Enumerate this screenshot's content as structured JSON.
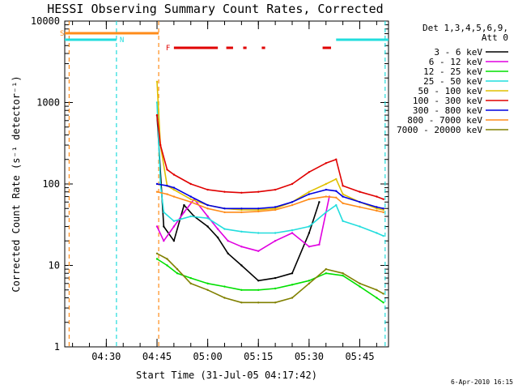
{
  "chart_data": {
    "type": "line",
    "title": "HESSI Observing Summary Count Rates, Corrected",
    "xlabel": "Start Time (31-Jul-05 04:17:42)",
    "ylabel": "Corrected Count Rate (s⁻¹ detector⁻¹)",
    "yscale": "log",
    "ylim": [
      1,
      10000
    ],
    "xlim": [
      "04:17:42",
      "05:53:30"
    ],
    "x_ticks": [
      "04:30",
      "04:45",
      "05:00",
      "05:15",
      "05:30",
      "05:45"
    ],
    "y_ticks": [
      "1",
      "10",
      "100",
      "1000",
      "10000"
    ],
    "timestamp": "6-Apr-2010 16:15",
    "legend_header": [
      "Det 1,3,4,5,6,9,",
      "Att 0"
    ],
    "legend_placement": "right",
    "flags": [
      {
        "label": "S",
        "color": "#ff8c1a"
      },
      {
        "label": "N",
        "color": "#22dddd"
      },
      {
        "label": "F",
        "color": "#e00000"
      }
    ],
    "series": [
      {
        "name": "3 - 6 keV",
        "color": "#000000",
        "x": [
          "04:45",
          "04:47",
          "04:50",
          "04:53",
          "04:56",
          "05:00",
          "05:03",
          "05:06",
          "05:10",
          "05:15",
          "05:20",
          "05:25",
          "05:30",
          "05:33"
        ],
        "y": [
          700,
          30,
          20,
          55,
          40,
          30,
          22,
          14,
          10,
          6.5,
          7,
          8,
          25,
          60
        ]
      },
      {
        "name": "6 - 12 keV",
        "color": "#e000e0",
        "x": [
          "04:45",
          "04:47",
          "04:50",
          "04:53",
          "04:56",
          "05:00",
          "05:03",
          "05:06",
          "05:10",
          "05:15",
          "05:20",
          "05:25",
          "05:30",
          "05:33",
          "05:36"
        ],
        "y": [
          30,
          20,
          30,
          45,
          65,
          40,
          28,
          20,
          17,
          15,
          20,
          25,
          17,
          18,
          70
        ]
      },
      {
        "name": "12 - 25 keV",
        "color": "#00e000",
        "x": [
          "04:45",
          "04:48",
          "04:51",
          "04:55",
          "05:00",
          "05:05",
          "05:10",
          "05:15",
          "05:20",
          "05:25",
          "05:30",
          "05:35",
          "05:40",
          "05:45",
          "05:50",
          "05:52"
        ],
        "y": [
          12,
          10,
          8,
          7,
          6,
          5.5,
          5,
          5,
          5.2,
          5.8,
          6.5,
          8,
          7.5,
          5.5,
          4,
          3.5
        ]
      },
      {
        "name": "25 - 50 keV",
        "color": "#22dddd",
        "x": [
          "04:45",
          "04:46",
          "04:47",
          "04:50",
          "04:55",
          "05:00",
          "05:05",
          "05:10",
          "05:15",
          "05:20",
          "05:25",
          "05:30",
          "05:35",
          "05:38",
          "05:40",
          "05:45",
          "05:50",
          "05:52"
        ],
        "y": [
          1000,
          100,
          45,
          35,
          40,
          38,
          28,
          26,
          25,
          25,
          27,
          30,
          45,
          55,
          35,
          30,
          25,
          23
        ]
      },
      {
        "name": "50 - 100 keV",
        "color": "#e0c000",
        "x": [
          "04:45",
          "04:46",
          "04:48",
          "04:50",
          "04:55",
          "05:00",
          "05:05",
          "05:10",
          "05:15",
          "05:20",
          "05:25",
          "05:30",
          "05:35",
          "05:38",
          "05:40",
          "05:45",
          "05:50",
          "05:52"
        ],
        "y": [
          1800,
          300,
          95,
          85,
          65,
          55,
          50,
          48,
          48,
          50,
          60,
          80,
          100,
          115,
          75,
          60,
          50,
          48
        ]
      },
      {
        "name": "100 - 300 keV",
        "color": "#e00000",
        "x": [
          "04:45",
          "04:46",
          "04:48",
          "04:50",
          "04:55",
          "05:00",
          "05:05",
          "05:10",
          "05:15",
          "05:20",
          "05:25",
          "05:30",
          "05:35",
          "05:38",
          "05:40",
          "05:45",
          "05:50",
          "05:52"
        ],
        "y": [
          700,
          300,
          150,
          130,
          100,
          85,
          80,
          78,
          80,
          85,
          100,
          140,
          180,
          200,
          95,
          80,
          70,
          65
        ]
      },
      {
        "name": "300 - 800 keV",
        "color": "#0000e0",
        "x": [
          "04:45",
          "04:48",
          "04:50",
          "04:55",
          "05:00",
          "05:05",
          "05:10",
          "05:15",
          "05:20",
          "05:25",
          "05:30",
          "05:35",
          "05:38",
          "05:40",
          "05:45",
          "05:50",
          "05:52"
        ],
        "y": [
          100,
          95,
          90,
          70,
          55,
          50,
          50,
          50,
          52,
          60,
          75,
          85,
          82,
          70,
          60,
          52,
          50
        ]
      },
      {
        "name": "800 - 7000 keV",
        "color": "#ff8c1a",
        "x": [
          "04:45",
          "04:48",
          "04:50",
          "04:55",
          "05:00",
          "05:05",
          "05:10",
          "05:15",
          "05:20",
          "05:25",
          "05:30",
          "05:35",
          "05:38",
          "05:40",
          "05:45",
          "05:50",
          "05:52"
        ],
        "y": [
          80,
          75,
          70,
          60,
          50,
          45,
          45,
          46,
          48,
          55,
          65,
          70,
          68,
          58,
          52,
          47,
          45
        ]
      },
      {
        "name": "7000 - 20000 keV",
        "color": "#808000",
        "x": [
          "04:45",
          "04:48",
          "04:51",
          "04:55",
          "05:00",
          "05:05",
          "05:10",
          "05:15",
          "05:20",
          "05:25",
          "05:30",
          "05:35",
          "05:40",
          "05:45",
          "05:50",
          "05:52"
        ],
        "y": [
          14,
          12,
          9,
          6,
          5,
          4,
          3.5,
          3.5,
          3.5,
          4,
          6,
          9,
          8,
          6,
          5,
          4.5
        ]
      }
    ]
  }
}
